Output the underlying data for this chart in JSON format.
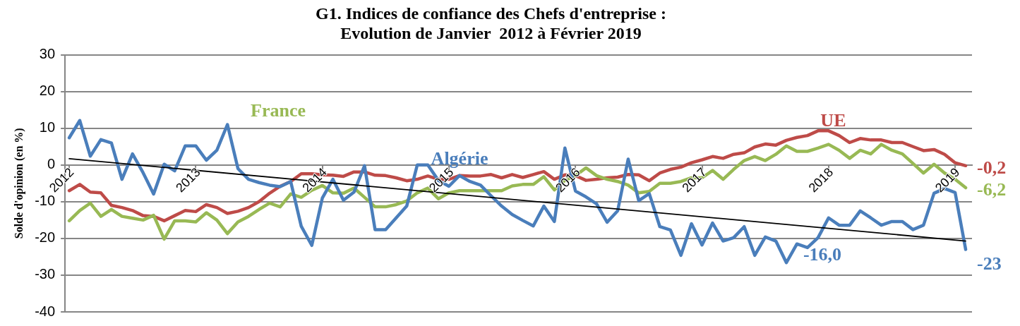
{
  "chart_data": {
    "type": "line",
    "title": "G1. Indices de confiance des Chefs d'entreprise :\nEvolution de Janvier  2012 à Février 2019",
    "ylabel": "Solde d'opinion (en %)",
    "x": [
      "2012-01",
      "2012-02",
      "2012-03",
      "2012-04",
      "2012-05",
      "2012-06",
      "2012-07",
      "2012-08",
      "2012-09",
      "2012-10",
      "2012-11",
      "2012-12",
      "2013-01",
      "2013-02",
      "2013-03",
      "2013-04",
      "2013-05",
      "2013-06",
      "2013-07",
      "2013-08",
      "2013-09",
      "2013-10",
      "2013-11",
      "2013-12",
      "2014-01",
      "2014-02",
      "2014-03",
      "2014-04",
      "2014-05",
      "2014-06",
      "2014-07",
      "2014-08",
      "2014-09",
      "2014-10",
      "2014-11",
      "2014-12",
      "2015-01",
      "2015-02",
      "2015-03",
      "2015-04",
      "2015-05",
      "2015-06",
      "2015-07",
      "2015-08",
      "2015-09",
      "2015-10",
      "2015-11",
      "2015-12",
      "2016-01",
      "2016-02",
      "2016-03",
      "2016-04",
      "2016-05",
      "2016-06",
      "2016-07",
      "2016-08",
      "2016-09",
      "2016-10",
      "2016-11",
      "2016-12",
      "2017-01",
      "2017-02",
      "2017-03",
      "2017-04",
      "2017-05",
      "2017-06",
      "2017-07",
      "2017-08",
      "2017-09",
      "2017-10",
      "2017-11",
      "2017-12",
      "2018-01",
      "2018-02",
      "2018-03",
      "2018-04",
      "2018-05",
      "2018-06",
      "2018-07",
      "2018-08",
      "2018-09",
      "2018-10",
      "2018-11",
      "2018-12",
      "2019-01",
      "2019-02"
    ],
    "series": [
      {
        "name": "Algérie",
        "color": "#4a7ebb",
        "values": [
          7.4,
          12.1,
          2.4,
          6.9,
          6,
          -3.9,
          3,
          -2.1,
          -7.9,
          0.2,
          -1.6,
          5.2,
          5.2,
          1.3,
          4,
          11,
          -1,
          -3.9,
          -4.8,
          -5.5,
          -5.9,
          -4.5,
          -16.7,
          -21.9,
          -9,
          -3.9,
          -9.6,
          -7.4,
          -0.2,
          -17.6,
          -17.6,
          -14.4,
          -11.2,
          0,
          0,
          -4.2,
          -5.8,
          -2.9,
          -4.5,
          -5.5,
          -8.4,
          -11.2,
          -13.5,
          -15.1,
          -16.6,
          -11.2,
          -15.4,
          4.6,
          -7.1,
          -8.7,
          -10.6,
          -15.6,
          -12.5,
          1.6,
          -9.7,
          -7.8,
          -16.8,
          -17.7,
          -24.6,
          -16,
          -21.8,
          -15.8,
          -20.7,
          -19.8,
          -16.8,
          -24.6,
          -19.6,
          -20.7,
          -26.6,
          -21.5,
          -22.5,
          -19.8,
          -14.4,
          -16.4,
          -16.4,
          -12.5,
          -14.4,
          -16.4,
          -15.4,
          -15.4,
          -17.6,
          -16.4,
          -7.7,
          -6.4,
          -7.5,
          -23
        ]
      },
      {
        "name": "France",
        "color": "#98b954",
        "values": [
          -15.2,
          -12.4,
          -10.4,
          -14,
          -12.1,
          -14,
          -14.5,
          -15,
          -13.7,
          -20.2,
          -15.2,
          -15.2,
          -15.5,
          -13,
          -15,
          -18.7,
          -15.5,
          -14,
          -12.1,
          -10.4,
          -11.4,
          -7.9,
          -8.8,
          -6.9,
          -5.6,
          -7.6,
          -7.7,
          -6.3,
          -8.8,
          -11.4,
          -11.4,
          -10.8,
          -9.8,
          -7.6,
          -6.3,
          -9.2,
          -7.6,
          -7,
          -7,
          -7,
          -7,
          -7,
          -5.7,
          -5.3,
          -5.3,
          -3.2,
          -6.8,
          -4.2,
          -2.9,
          -0.8,
          -2.9,
          -3.9,
          -4.5,
          -5.5,
          -7.6,
          -7.2,
          -5,
          -5,
          -4.5,
          -3.5,
          -3.5,
          -1.5,
          -3.9,
          -1.2,
          1.2,
          2.3,
          1.2,
          2.9,
          5.2,
          3.7,
          3.7,
          4.6,
          5.6,
          4,
          1.8,
          4,
          3,
          5.6,
          4,
          3,
          0.4,
          -2.2,
          0.2,
          -2.2,
          -3.9,
          -6.2
        ]
      },
      {
        "name": "UE",
        "color": "#be4b48",
        "values": [
          -7,
          -5.3,
          -7.4,
          -7.6,
          -11,
          -11.6,
          -12.4,
          -13.8,
          -14,
          -15.2,
          -13.8,
          -12.4,
          -12.7,
          -10.8,
          -11.6,
          -13.2,
          -12.6,
          -11.6,
          -10,
          -7.7,
          -5.8,
          -4.5,
          -2.4,
          -2.4,
          -2.7,
          -2.8,
          -3.1,
          -1.9,
          -1.9,
          -2.8,
          -2.9,
          -3.5,
          -4.3,
          -3.9,
          -3,
          -3.9,
          -3.9,
          -2.9,
          -3,
          -3,
          -2.6,
          -3.5,
          -2.6,
          -3.4,
          -2.6,
          -1.8,
          -3.9,
          -2.7,
          -2.9,
          -4.2,
          -3.9,
          -3.5,
          -3.3,
          -2.6,
          -2.7,
          -4.3,
          -2.2,
          -1.2,
          -0.6,
          0.6,
          1.4,
          2.3,
          1.8,
          2.9,
          3.3,
          4.9,
          5.7,
          5.4,
          6.7,
          7.5,
          8,
          9.3,
          9.3,
          8,
          6.1,
          7.2,
          6.8,
          6.8,
          6.1,
          6.1,
          5,
          3.9,
          4.2,
          2.9,
          0.6,
          -0.2
        ]
      },
      {
        "type": "line",
        "color": "#000000",
        "x": [
          "2012-01",
          "2019-02"
        ],
        "values": [
          1.7,
          -20.7
        ]
      }
    ],
    "xlim": [
      "2011-12-19",
      "2019-02-19"
    ],
    "xticks": [
      {
        "value": "2012-01",
        "label": "2012"
      },
      {
        "value": "2013-01",
        "label": "2013"
      },
      {
        "value": "2014-01",
        "label": "2014"
      },
      {
        "value": "2015-01",
        "label": "2015"
      },
      {
        "value": "2016-01",
        "label": "2016"
      },
      {
        "value": "2017-01",
        "label": "2017"
      },
      {
        "value": "2018-01",
        "label": "2018"
      },
      {
        "value": "2019-01",
        "label": "2019"
      }
    ],
    "ylim": [
      -40,
      30
    ],
    "yticks": [
      -40,
      -30,
      -20,
      -10,
      0,
      10,
      20,
      30
    ],
    "annotations": [
      {
        "text": "-0,2",
        "x": "2019-02",
        "y": -0.2
      },
      {
        "text": "-6,2",
        "x": "2019-02",
        "y": -6.2
      },
      {
        "text": "-23",
        "x": "2019-02",
        "y": -23
      },
      "-16,0"
    ],
    "grid": "y",
    "legend": false,
    "marker": "none",
    "line_style": "solid"
  }
}
